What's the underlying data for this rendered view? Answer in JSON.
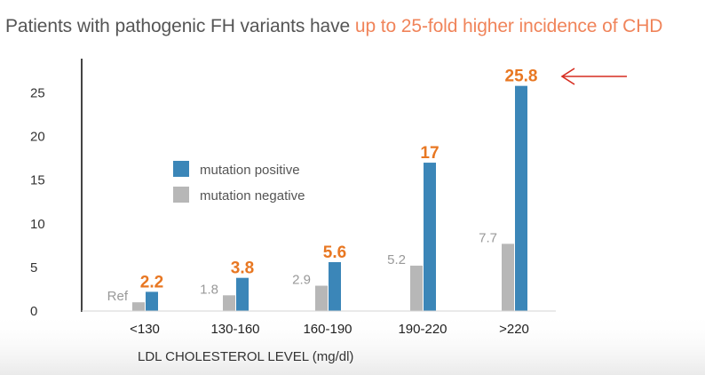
{
  "headline": {
    "prefix": "Patients with pathogenic FH variants have ",
    "highlight": "up to 25-fold higher incidence of CHD"
  },
  "chart_data": {
    "type": "bar",
    "categories": [
      "<130",
      "130-160",
      "160-190",
      "190-220",
      ">220"
    ],
    "series": [
      {
        "name": "mutation negative",
        "values": [
          1,
          1.8,
          2.9,
          5.2,
          7.7
        ],
        "labels": [
          "Ref",
          "1.8",
          "2.9",
          "5.2",
          "7.7"
        ],
        "color": "#b7b7b7",
        "label_color": "#999999"
      },
      {
        "name": "mutation positive",
        "values": [
          2.2,
          3.8,
          5.6,
          17,
          25.8
        ],
        "labels": [
          "2.2",
          "3.8",
          "5.6",
          "17",
          "25.8"
        ],
        "color": "#3b86b8",
        "label_color": "#e87722"
      }
    ],
    "xlabel": "LDL CHOLESTEROL LEVEL (mg/dl)",
    "ylabel": "",
    "ylim": [
      0,
      28
    ],
    "yticks": [
      0,
      5,
      10,
      15,
      20,
      25
    ],
    "grid": false,
    "legend": "upper-left",
    "annotation": {
      "type": "arrow",
      "target": ">220",
      "color": "#d62d20"
    }
  }
}
